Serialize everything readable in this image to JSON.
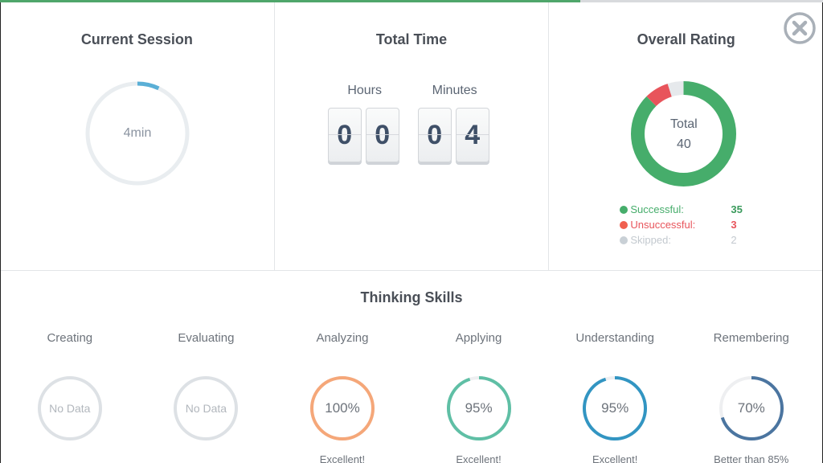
{
  "progress": {
    "percent": 70.5,
    "color": "#4fa66b"
  },
  "current_session": {
    "title": "Current Session",
    "value_label": "4min",
    "ring_percent": 7,
    "ring_color": "#5aafd6",
    "track_color": "#e9edf0"
  },
  "total_time": {
    "title": "Total Time",
    "hours_label": "Hours",
    "minutes_label": "Minutes",
    "hours_digits": [
      "0",
      "0"
    ],
    "minutes_digits": [
      "0",
      "4"
    ]
  },
  "overall_rating": {
    "title": "Overall Rating",
    "center_label": "Total",
    "center_value": "40",
    "legend": [
      {
        "label": "Successful:",
        "value": "35",
        "color": "#46ad6b"
      },
      {
        "label": "Unsuccessful:",
        "value": "3",
        "color": "#e8545b"
      },
      {
        "label": "Skipped:",
        "value": "2",
        "color": "#c9d0d6"
      }
    ]
  },
  "close_button": {
    "icon": "close-circle-icon",
    "color": "#a9b0b8"
  },
  "thinking_skills": {
    "title": "Thinking Skills",
    "skills": [
      {
        "name": "Creating",
        "value": "No Data",
        "percent": 0,
        "color": "#dde1e5",
        "note": ""
      },
      {
        "name": "Evaluating",
        "value": "No Data",
        "percent": 0,
        "color": "#dde1e5",
        "note": ""
      },
      {
        "name": "Analyzing",
        "value": "100%",
        "percent": 100,
        "color": "#f5a779",
        "note": "Excellent!"
      },
      {
        "name": "Applying",
        "value": "95%",
        "percent": 95,
        "color": "#5fbfa5",
        "note": "Excellent!"
      },
      {
        "name": "Understanding",
        "value": "95%",
        "percent": 95,
        "color": "#3295c2",
        "note": "Excellent!"
      },
      {
        "name": "Remembering",
        "value": "70%",
        "percent": 70,
        "color": "#4b75a0",
        "note": "Better than 85%"
      }
    ]
  },
  "chart_data": {
    "type": "pie",
    "title": "Overall Rating",
    "categories": [
      "Successful",
      "Unsuccessful",
      "Skipped"
    ],
    "values": [
      35,
      3,
      2
    ],
    "total": 40
  }
}
